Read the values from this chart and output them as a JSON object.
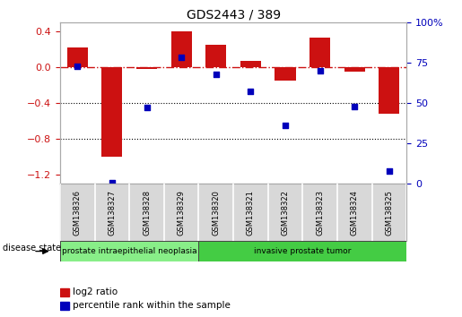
{
  "title": "GDS2443 / 389",
  "samples": [
    "GSM138326",
    "GSM138327",
    "GSM138328",
    "GSM138329",
    "GSM138320",
    "GSM138321",
    "GSM138322",
    "GSM138323",
    "GSM138324",
    "GSM138325"
  ],
  "log2_ratio": [
    0.22,
    -1.0,
    -0.02,
    0.4,
    0.25,
    0.07,
    -0.15,
    0.33,
    -0.05,
    -0.52
  ],
  "percentile_rank": [
    73,
    1,
    47,
    78,
    68,
    57,
    36,
    70,
    48,
    8
  ],
  "groups": [
    {
      "label": "prostate intraepithelial neoplasia",
      "start": 0,
      "end": 4,
      "color": "#88ee88"
    },
    {
      "label": "invasive prostate tumor",
      "start": 4,
      "end": 10,
      "color": "#44cc44"
    }
  ],
  "bar_color": "#cc1111",
  "dot_color": "#0000bb",
  "hline_color": "#cc1111",
  "dotted_line_color": "#000000",
  "ylim_left": [
    -1.3,
    0.5
  ],
  "ylim_right": [
    0,
    100
  ],
  "yticks_left": [
    -1.2,
    -0.8,
    -0.4,
    0.0,
    0.4
  ],
  "yticks_right": [
    0,
    25,
    50,
    75,
    100
  ],
  "background_color": "#ffffff",
  "plot_bg_color": "#ffffff",
  "legend_items": [
    "log2 ratio",
    "percentile rank within the sample"
  ],
  "disease_state_label": "disease state"
}
